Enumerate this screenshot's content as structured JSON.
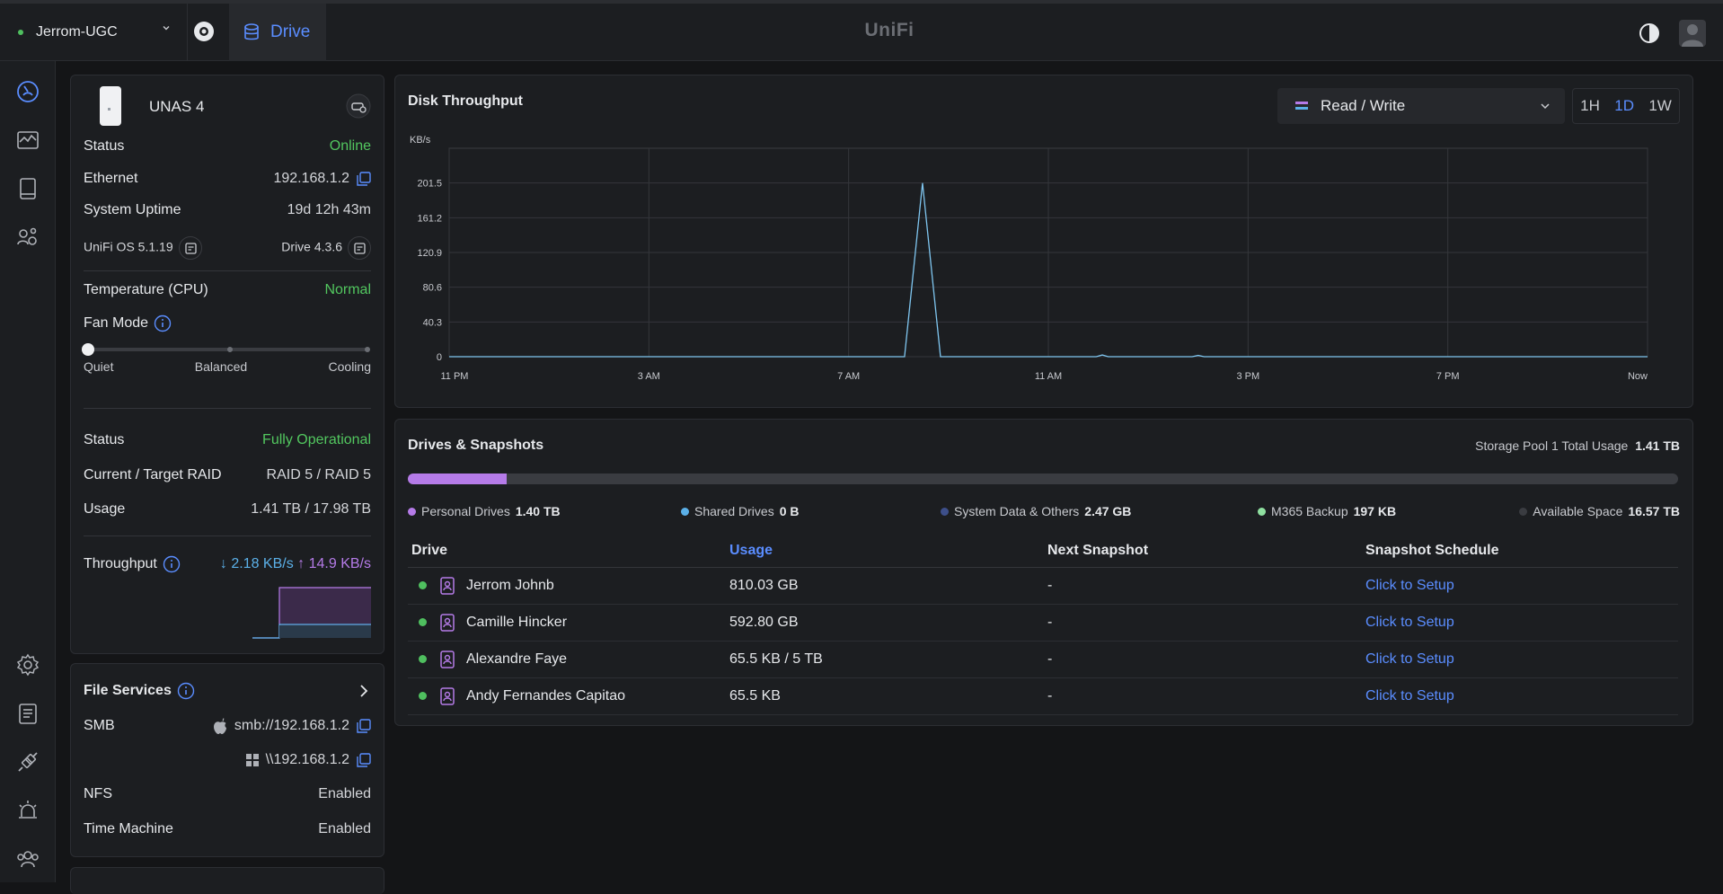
{
  "topbar": {
    "site_name": "Jerrom-UGC",
    "tab_label": "Drive",
    "logo": "UniFi"
  },
  "device": {
    "name": "UNAS 4",
    "status_label": "Status",
    "status_value": "Online",
    "ethernet_label": "Ethernet",
    "ethernet_value": "192.168.1.2",
    "uptime_label": "System Uptime",
    "uptime_value": "19d 12h 43m",
    "os_version": "UniFi OS 5.1.19",
    "drive_version": "Drive 4.3.6",
    "temp_label": "Temperature (CPU)",
    "temp_value": "Normal",
    "fan_label": "Fan Mode",
    "fan_options": [
      "Quiet",
      "Balanced",
      "Cooling"
    ],
    "fan_selected": "Quiet",
    "raid_status_label": "Status",
    "raid_status_value": "Fully Operational",
    "raid_label": "Current / Target RAID",
    "raid_value": "RAID 5 / RAID 5",
    "usage_label": "Usage",
    "usage_value": "1.41 TB / 17.98 TB",
    "throughput_label": "Throughput",
    "throughput_down": "↓ 2.18 KB/s",
    "throughput_up": "↑ 14.9 KB/s"
  },
  "file_services": {
    "title": "File Services",
    "smb_label": "SMB",
    "smb_mac": "smb://192.168.1.2",
    "smb_win": "\\\\192.168.1.2",
    "nfs_label": "NFS",
    "nfs_value": "Enabled",
    "tm_label": "Time Machine",
    "tm_value": "Enabled"
  },
  "throughput_chart": {
    "title": "Disk Throughput",
    "mode": "Read / Write",
    "ranges": [
      "1H",
      "1D",
      "1W"
    ],
    "active_range": "1D"
  },
  "chart_data": {
    "type": "line",
    "title": "Disk Throughput",
    "ylabel": "KB/s",
    "yticks": [
      "201.5",
      "161.2",
      "120.9",
      "80.6",
      "40.3",
      "0"
    ],
    "xticks": [
      "11 PM",
      "3 AM",
      "7 AM",
      "11 AM",
      "3 PM",
      "7 PM",
      "Now"
    ],
    "ylim": [
      0,
      241.8
    ],
    "x": [
      0,
      0.38,
      0.395,
      0.41,
      0.54,
      0.545,
      0.55,
      0.62,
      0.625,
      0.63,
      1
    ],
    "series": [
      {
        "values": [
          0,
          0,
          201.5,
          0,
          0,
          2,
          0,
          0,
          1.5,
          0,
          0
        ]
      }
    ],
    "grid": true
  },
  "drives_card": {
    "title": "Drives & Snapshots",
    "pool_label": "Storage Pool 1 Total Usage",
    "pool_value": "1.41 TB",
    "usage_fraction": 0.078,
    "legend": [
      {
        "label": "Personal Drives",
        "value": "1.40 TB",
        "color": "#b57be8"
      },
      {
        "label": "Shared Drives",
        "value": "0 B",
        "color": "#5bb0e8"
      },
      {
        "label": "System Data & Others",
        "value": "2.47 GB",
        "color": "#3d4f8a"
      },
      {
        "label": "M365 Backup",
        "value": "197 KB",
        "color": "#8fe0a0"
      },
      {
        "label": "Available Space",
        "value": "16.57 TB",
        "color": "#3a3c41"
      }
    ],
    "columns": [
      "Drive",
      "Usage",
      "Next Snapshot",
      "Snapshot Schedule"
    ],
    "rows": [
      {
        "name": "Jerrom Johnb",
        "usage": "810.03 GB",
        "next": "-",
        "schedule": "Click to Setup"
      },
      {
        "name": "Camille Hincker",
        "usage": "592.80 GB",
        "next": "-",
        "schedule": "Click to Setup"
      },
      {
        "name": "Alexandre Faye",
        "usage": "65.5 KB / 5 TB",
        "next": "-",
        "schedule": "Click to Setup"
      },
      {
        "name": "Andy Fernandes Capitao",
        "usage": "65.5 KB",
        "next": "-",
        "schedule": "Click to Setup"
      }
    ]
  }
}
